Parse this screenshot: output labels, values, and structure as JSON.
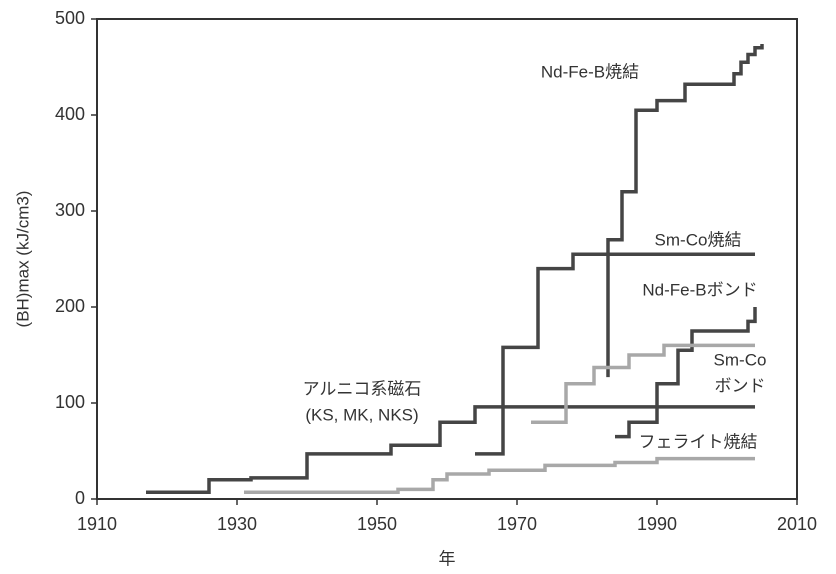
{
  "chart_data": {
    "type": "line",
    "step": true,
    "xlabel": "年",
    "ylabel": "(BH)max (kJ/cm3)",
    "xlim": [
      1910,
      2010
    ],
    "xticks": [
      1910,
      1930,
      1950,
      1970,
      1990,
      2010
    ],
    "ylim": [
      0,
      500
    ],
    "yticks": [
      0,
      100,
      200,
      300,
      400,
      500
    ],
    "series": [
      {
        "name": "アルニコ系磁石",
        "color": "#454545",
        "x": [
          1917,
          1926,
          1926,
          1932,
          1932,
          1940,
          1940,
          1952,
          1952,
          1959,
          1959,
          1964,
          1964,
          2004
        ],
        "values": [
          7,
          7,
          20,
          20,
          22,
          22,
          47,
          47,
          56,
          56,
          80,
          80,
          96,
          96
        ]
      },
      {
        "name": "Sm-Co焼結",
        "color": "#454545",
        "x": [
          1964,
          1968,
          1968,
          1973,
          1973,
          1978,
          1978,
          2004
        ],
        "values": [
          47,
          47,
          158,
          158,
          240,
          240,
          255,
          255
        ]
      },
      {
        "name": "Nd-Fe-B焼結",
        "color": "#454545",
        "x": [
          1983,
          1983,
          1985,
          1985,
          1987,
          1987,
          1990,
          1990,
          1994,
          1994,
          2001,
          2001,
          2002,
          2002,
          2003,
          2003,
          2004,
          2004,
          2005,
          2005
        ],
        "values": [
          127,
          270,
          270,
          320,
          320,
          405,
          405,
          415,
          415,
          432,
          432,
          443,
          443,
          455,
          455,
          463,
          463,
          470,
          470,
          474
        ]
      },
      {
        "name": "Nd-Fe-Bボンド",
        "color": "#454545",
        "x": [
          1984,
          1986,
          1986,
          1990,
          1990,
          1993,
          1993,
          1995,
          1995,
          2003,
          2003,
          2004,
          2004
        ],
        "values": [
          65,
          65,
          80,
          80,
          120,
          120,
          155,
          155,
          175,
          175,
          185,
          185,
          200
        ]
      },
      {
        "name": "Sm-Coボンド",
        "color": "#a8a8a8",
        "x": [
          1972,
          1977,
          1977,
          1981,
          1981,
          1986,
          1986,
          1991,
          1991,
          2004
        ],
        "values": [
          80,
          80,
          120,
          120,
          137,
          137,
          150,
          150,
          160,
          160
        ]
      },
      {
        "name": "フェライト焼結",
        "color": "#a8a8a8",
        "x": [
          1931,
          1953,
          1953,
          1958,
          1958,
          1960,
          1960,
          1966,
          1966,
          1974,
          1974,
          1984,
          1984,
          1990,
          1990,
          2004
        ],
        "values": [
          7,
          7,
          10,
          10,
          20,
          20,
          26,
          26,
          30,
          30,
          35,
          35,
          38,
          38,
          42,
          42
        ]
      }
    ],
    "annotations": [
      [
        "Nd-Fe-B焼結"
      ],
      [
        "Sm-Co焼結"
      ],
      [
        "Nd-Fe-Bボンド"
      ],
      [
        "Sm-Co",
        "ボンド"
      ],
      [
        "アルニコ系磁石",
        "(KS, MK, NKS)"
      ],
      [
        "フェライト焼結"
      ]
    ]
  }
}
